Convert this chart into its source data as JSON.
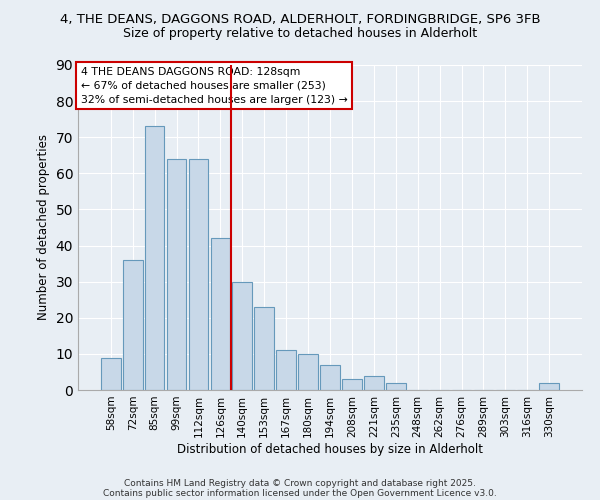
{
  "title_line1": "4, THE DEANS, DAGGONS ROAD, ALDERHOLT, FORDINGBRIDGE, SP6 3FB",
  "title_line2": "Size of property relative to detached houses in Alderholt",
  "xlabel": "Distribution of detached houses by size in Alderholt",
  "ylabel": "Number of detached properties",
  "bar_labels": [
    "58sqm",
    "72sqm",
    "85sqm",
    "99sqm",
    "112sqm",
    "126sqm",
    "140sqm",
    "153sqm",
    "167sqm",
    "180sqm",
    "194sqm",
    "208sqm",
    "221sqm",
    "235sqm",
    "248sqm",
    "262sqm",
    "276sqm",
    "289sqm",
    "303sqm",
    "316sqm",
    "330sqm"
  ],
  "bar_values": [
    9,
    36,
    73,
    64,
    64,
    42,
    30,
    23,
    11,
    10,
    7,
    3,
    4,
    2,
    0,
    0,
    0,
    0,
    0,
    0,
    2
  ],
  "bar_color": "#c8d8e8",
  "bar_edge_color": "#6699bb",
  "vline_x": 5.5,
  "vline_color": "#cc0000",
  "annotation_line1": "4 THE DEANS DAGGONS ROAD: 128sqm",
  "annotation_line2": "← 67% of detached houses are smaller (253)",
  "annotation_line3": "32% of semi-detached houses are larger (123) →",
  "ylim": [
    0,
    90
  ],
  "yticks": [
    0,
    10,
    20,
    30,
    40,
    50,
    60,
    70,
    80,
    90
  ],
  "background_color": "#e8eef4",
  "footer_line1": "Contains HM Land Registry data © Crown copyright and database right 2025.",
  "footer_line2": "Contains public sector information licensed under the Open Government Licence v3.0."
}
